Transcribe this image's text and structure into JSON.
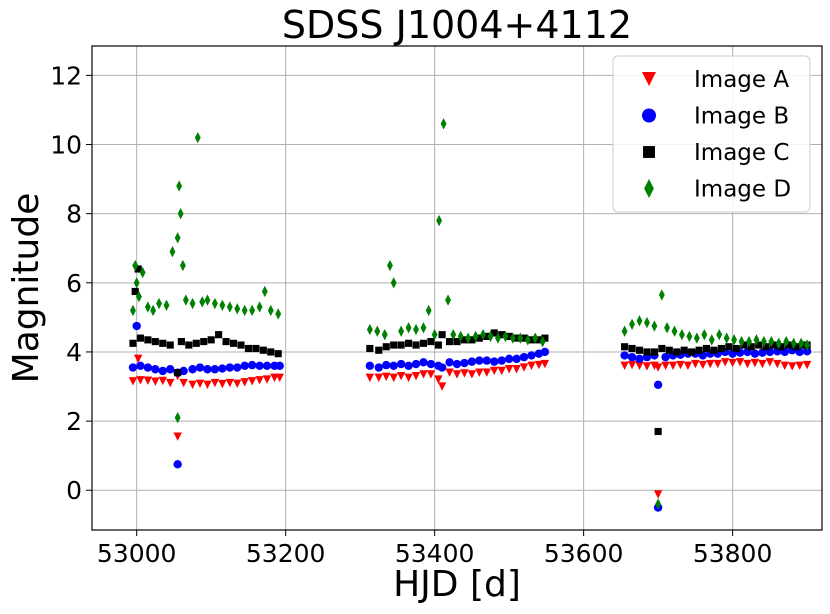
{
  "chart_data": {
    "type": "scatter",
    "title": "SDSS J1004+4112",
    "xlabel": "HJD [d]",
    "ylabel": "Magnitude",
    "xlim": [
      52940,
      53920
    ],
    "ylim": [
      -1.15,
      12.85
    ],
    "x_ticks": [
      53000,
      53200,
      53400,
      53600,
      53800
    ],
    "x_tick_labels": [
      "53000",
      "53200",
      "53400",
      "53600",
      "53800"
    ],
    "y_ticks": [
      0,
      2,
      4,
      6,
      8,
      10,
      12
    ],
    "y_tick_labels": [
      "0",
      "2",
      "4",
      "6",
      "8",
      "10",
      "12"
    ],
    "grid": true,
    "legend_position": "top-right",
    "series": [
      {
        "name": "Image A",
        "marker": "triangle-down",
        "color": "#ff0000",
        "points": [
          [
            52995,
            3.15
          ],
          [
            53002,
            3.8
          ],
          [
            53005,
            3.18
          ],
          [
            53015,
            3.17
          ],
          [
            53025,
            3.14
          ],
          [
            53035,
            3.16
          ],
          [
            53045,
            3.1
          ],
          [
            53055,
            1.55
          ],
          [
            53055,
            3.3
          ],
          [
            53063,
            3.1
          ],
          [
            53075,
            3.05
          ],
          [
            53085,
            3.08
          ],
          [
            53095,
            3.05
          ],
          [
            53105,
            3.1
          ],
          [
            53115,
            3.07
          ],
          [
            53125,
            3.1
          ],
          [
            53135,
            3.08
          ],
          [
            53145,
            3.12
          ],
          [
            53155,
            3.15
          ],
          [
            53165,
            3.18
          ],
          [
            53175,
            3.2
          ],
          [
            53185,
            3.25
          ],
          [
            53192,
            3.25
          ],
          [
            53313,
            3.25
          ],
          [
            53325,
            3.25
          ],
          [
            53335,
            3.28
          ],
          [
            53345,
            3.25
          ],
          [
            53355,
            3.3
          ],
          [
            53365,
            3.25
          ],
          [
            53375,
            3.3
          ],
          [
            53385,
            3.35
          ],
          [
            53395,
            3.35
          ],
          [
            53405,
            3.2
          ],
          [
            53410,
            3.0
          ],
          [
            53420,
            3.4
          ],
          [
            53430,
            3.35
          ],
          [
            53440,
            3.38
          ],
          [
            53450,
            3.35
          ],
          [
            53460,
            3.4
          ],
          [
            53470,
            3.4
          ],
          [
            53480,
            3.45
          ],
          [
            53490,
            3.45
          ],
          [
            53500,
            3.5
          ],
          [
            53510,
            3.5
          ],
          [
            53520,
            3.55
          ],
          [
            53530,
            3.6
          ],
          [
            53540,
            3.62
          ],
          [
            53548,
            3.65
          ],
          [
            53655,
            3.6
          ],
          [
            53665,
            3.62
          ],
          [
            53675,
            3.6
          ],
          [
            53685,
            3.58
          ],
          [
            53695,
            3.6
          ],
          [
            53700,
            -0.12
          ],
          [
            53700,
            3.55
          ],
          [
            53710,
            3.6
          ],
          [
            53720,
            3.6
          ],
          [
            53730,
            3.62
          ],
          [
            53740,
            3.6
          ],
          [
            53750,
            3.65
          ],
          [
            53760,
            3.62
          ],
          [
            53770,
            3.65
          ],
          [
            53780,
            3.65
          ],
          [
            53790,
            3.7
          ],
          [
            53800,
            3.68
          ],
          [
            53810,
            3.7
          ],
          [
            53820,
            3.65
          ],
          [
            53830,
            3.68
          ],
          [
            53840,
            3.65
          ],
          [
            53850,
            3.7
          ],
          [
            53860,
            3.65
          ],
          [
            53870,
            3.6
          ],
          [
            53880,
            3.58
          ],
          [
            53890,
            3.6
          ],
          [
            53900,
            3.62
          ]
        ]
      },
      {
        "name": "Image B",
        "marker": "circle",
        "color": "#0000ff",
        "points": [
          [
            52995,
            3.55
          ],
          [
            53000,
            4.75
          ],
          [
            53005,
            3.6
          ],
          [
            53015,
            3.55
          ],
          [
            53025,
            3.5
          ],
          [
            53035,
            3.45
          ],
          [
            53045,
            3.5
          ],
          [
            53055,
            0.75
          ],
          [
            53055,
            3.4
          ],
          [
            53063,
            3.45
          ],
          [
            53075,
            3.5
          ],
          [
            53085,
            3.55
          ],
          [
            53095,
            3.5
          ],
          [
            53105,
            3.5
          ],
          [
            53115,
            3.52
          ],
          [
            53125,
            3.55
          ],
          [
            53135,
            3.55
          ],
          [
            53145,
            3.6
          ],
          [
            53155,
            3.62
          ],
          [
            53165,
            3.6
          ],
          [
            53175,
            3.6
          ],
          [
            53185,
            3.6
          ],
          [
            53192,
            3.6
          ],
          [
            53313,
            3.6
          ],
          [
            53325,
            3.55
          ],
          [
            53335,
            3.62
          ],
          [
            53345,
            3.6
          ],
          [
            53355,
            3.65
          ],
          [
            53365,
            3.6
          ],
          [
            53375,
            3.65
          ],
          [
            53385,
            3.7
          ],
          [
            53395,
            3.65
          ],
          [
            53405,
            3.6
          ],
          [
            53410,
            3.55
          ],
          [
            53420,
            3.7
          ],
          [
            53430,
            3.65
          ],
          [
            53440,
            3.68
          ],
          [
            53450,
            3.72
          ],
          [
            53460,
            3.75
          ],
          [
            53470,
            3.75
          ],
          [
            53480,
            3.72
          ],
          [
            53490,
            3.75
          ],
          [
            53500,
            3.8
          ],
          [
            53510,
            3.8
          ],
          [
            53520,
            3.85
          ],
          [
            53530,
            3.9
          ],
          [
            53540,
            3.95
          ],
          [
            53548,
            4.0
          ],
          [
            53655,
            3.9
          ],
          [
            53665,
            3.85
          ],
          [
            53675,
            3.8
          ],
          [
            53685,
            3.85
          ],
          [
            53695,
            3.9
          ],
          [
            53700,
            3.05
          ],
          [
            53700,
            -0.5
          ],
          [
            53710,
            3.85
          ],
          [
            53720,
            3.9
          ],
          [
            53730,
            3.92
          ],
          [
            53740,
            3.95
          ],
          [
            53750,
            3.95
          ],
          [
            53760,
            3.9
          ],
          [
            53770,
            3.95
          ],
          [
            53780,
            3.95
          ],
          [
            53790,
            4.0
          ],
          [
            53800,
            3.95
          ],
          [
            53810,
            3.98
          ],
          [
            53820,
            4.0
          ],
          [
            53830,
            3.95
          ],
          [
            53840,
            3.98
          ],
          [
            53850,
            4.0
          ],
          [
            53860,
            4.02
          ],
          [
            53870,
            4.0
          ],
          [
            53880,
            4.05
          ],
          [
            53890,
            4.0
          ],
          [
            53900,
            4.02
          ]
        ]
      },
      {
        "name": "Image C",
        "marker": "square",
        "color": "#000000",
        "points": [
          [
            52995,
            4.25
          ],
          [
            52998,
            5.75
          ],
          [
            53002,
            6.4
          ],
          [
            53005,
            4.4
          ],
          [
            53015,
            4.35
          ],
          [
            53025,
            4.3
          ],
          [
            53035,
            4.25
          ],
          [
            53045,
            4.2
          ],
          [
            53055,
            3.4
          ],
          [
            53060,
            4.3
          ],
          [
            53070,
            4.2
          ],
          [
            53080,
            4.25
          ],
          [
            53090,
            4.3
          ],
          [
            53100,
            4.35
          ],
          [
            53110,
            4.5
          ],
          [
            53120,
            4.3
          ],
          [
            53130,
            4.25
          ],
          [
            53140,
            4.2
          ],
          [
            53150,
            4.1
          ],
          [
            53160,
            4.1
          ],
          [
            53170,
            4.05
          ],
          [
            53180,
            4.0
          ],
          [
            53190,
            3.95
          ],
          [
            53313,
            4.1
          ],
          [
            53325,
            4.05
          ],
          [
            53335,
            4.15
          ],
          [
            53345,
            4.2
          ],
          [
            53355,
            4.2
          ],
          [
            53365,
            4.25
          ],
          [
            53375,
            4.2
          ],
          [
            53385,
            4.25
          ],
          [
            53395,
            4.3
          ],
          [
            53405,
            4.2
          ],
          [
            53410,
            4.5
          ],
          [
            53420,
            4.3
          ],
          [
            53430,
            4.3
          ],
          [
            53440,
            4.35
          ],
          [
            53450,
            4.35
          ],
          [
            53460,
            4.4
          ],
          [
            53470,
            4.45
          ],
          [
            53480,
            4.55
          ],
          [
            53490,
            4.5
          ],
          [
            53500,
            4.45
          ],
          [
            53510,
            4.4
          ],
          [
            53520,
            4.4
          ],
          [
            53530,
            4.35
          ],
          [
            53540,
            4.35
          ],
          [
            53548,
            4.4
          ],
          [
            53655,
            4.15
          ],
          [
            53665,
            4.1
          ],
          [
            53675,
            4.05
          ],
          [
            53685,
            4.0
          ],
          [
            53695,
            4.0
          ],
          [
            53700,
            1.7
          ],
          [
            53705,
            4.1
          ],
          [
            53715,
            4.05
          ],
          [
            53725,
            4.0
          ],
          [
            53735,
            4.05
          ],
          [
            53745,
            4.0
          ],
          [
            53755,
            4.05
          ],
          [
            53765,
            4.1
          ],
          [
            53775,
            4.05
          ],
          [
            53785,
            4.1
          ],
          [
            53795,
            4.15
          ],
          [
            53805,
            4.1
          ],
          [
            53815,
            4.2
          ],
          [
            53825,
            4.15
          ],
          [
            53835,
            4.2
          ],
          [
            53845,
            4.15
          ],
          [
            53855,
            4.2
          ],
          [
            53865,
            4.15
          ],
          [
            53875,
            4.2
          ],
          [
            53885,
            4.15
          ],
          [
            53895,
            4.2
          ],
          [
            53900,
            4.2
          ]
        ]
      },
      {
        "name": "Image D",
        "marker": "thin-diamond",
        "color": "#008000",
        "points": [
          [
            52995,
            5.2
          ],
          [
            52998,
            6.5
          ],
          [
            53000,
            6.0
          ],
          [
            53003,
            5.6
          ],
          [
            53008,
            6.3
          ],
          [
            53015,
            5.3
          ],
          [
            53022,
            5.2
          ],
          [
            53030,
            5.4
          ],
          [
            53040,
            5.35
          ],
          [
            53048,
            6.9
          ],
          [
            53055,
            2.1
          ],
          [
            53055,
            7.3
          ],
          [
            53057,
            8.8
          ],
          [
            53059,
            8.0
          ],
          [
            53062,
            6.5
          ],
          [
            53066,
            5.5
          ],
          [
            53075,
            5.4
          ],
          [
            53082,
            10.2
          ],
          [
            53088,
            5.45
          ],
          [
            53095,
            5.5
          ],
          [
            53105,
            5.4
          ],
          [
            53115,
            5.35
          ],
          [
            53125,
            5.3
          ],
          [
            53135,
            5.25
          ],
          [
            53145,
            5.2
          ],
          [
            53155,
            5.2
          ],
          [
            53165,
            5.3
          ],
          [
            53172,
            5.75
          ],
          [
            53180,
            5.2
          ],
          [
            53190,
            5.1
          ],
          [
            53313,
            4.65
          ],
          [
            53323,
            4.6
          ],
          [
            53333,
            4.5
          ],
          [
            53340,
            6.5
          ],
          [
            53345,
            6.0
          ],
          [
            53355,
            4.6
          ],
          [
            53365,
            4.7
          ],
          [
            53375,
            4.65
          ],
          [
            53385,
            4.7
          ],
          [
            53392,
            5.2
          ],
          [
            53400,
            4.5
          ],
          [
            53406,
            7.8
          ],
          [
            53412,
            10.6
          ],
          [
            53418,
            5.5
          ],
          [
            53425,
            4.5
          ],
          [
            53435,
            4.45
          ],
          [
            53445,
            4.4
          ],
          [
            53455,
            4.45
          ],
          [
            53465,
            4.5
          ],
          [
            53475,
            4.45
          ],
          [
            53485,
            4.4
          ],
          [
            53495,
            4.45
          ],
          [
            53505,
            4.4
          ],
          [
            53515,
            4.4
          ],
          [
            53525,
            4.35
          ],
          [
            53535,
            4.4
          ],
          [
            53545,
            4.3
          ],
          [
            53655,
            4.6
          ],
          [
            53665,
            4.8
          ],
          [
            53675,
            4.9
          ],
          [
            53685,
            4.85
          ],
          [
            53695,
            4.75
          ],
          [
            53700,
            -0.4
          ],
          [
            53705,
            5.65
          ],
          [
            53712,
            4.7
          ],
          [
            53722,
            4.6
          ],
          [
            53732,
            4.5
          ],
          [
            53742,
            4.45
          ],
          [
            53752,
            4.4
          ],
          [
            53762,
            4.5
          ],
          [
            53772,
            4.35
          ],
          [
            53782,
            4.5
          ],
          [
            53792,
            4.4
          ],
          [
            53802,
            4.35
          ],
          [
            53812,
            4.3
          ],
          [
            53822,
            4.3
          ],
          [
            53832,
            4.35
          ],
          [
            53842,
            4.3
          ],
          [
            53852,
            4.3
          ],
          [
            53862,
            4.25
          ],
          [
            53872,
            4.3
          ],
          [
            53882,
            4.25
          ],
          [
            53892,
            4.25
          ],
          [
            53900,
            4.2
          ]
        ]
      }
    ]
  }
}
